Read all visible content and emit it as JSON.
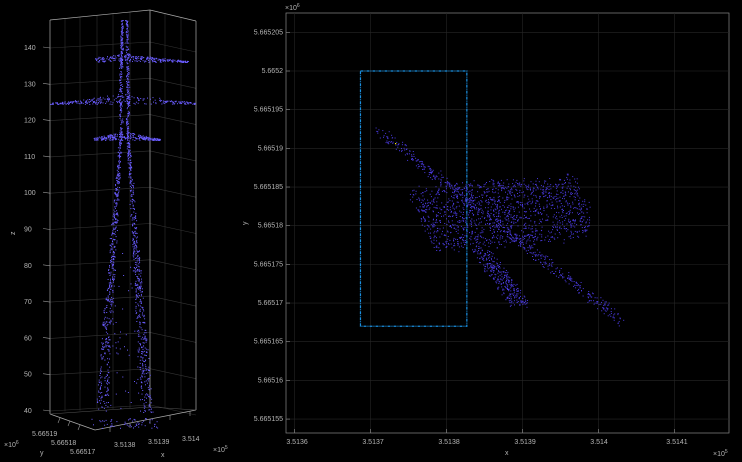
{
  "chart_data": [
    {
      "type": "scatter",
      "projection": "3d",
      "xlabel": "x",
      "ylabel": "y",
      "zlabel": "z",
      "x_ticks": [
        "3.5138",
        "3.5139",
        "3.514"
      ],
      "x_exponent": "×10",
      "x_exponent_power": "5",
      "y_ticks": [
        "5.66519",
        "5.66518",
        "5.66517"
      ],
      "y_exponent": "×10",
      "y_exponent_power": "6",
      "z_ticks": [
        40,
        50,
        60,
        70,
        80,
        90,
        100,
        110,
        120,
        130,
        140
      ],
      "zlim": [
        38,
        147
      ],
      "grid": true,
      "point_color": "#6a5cff",
      "background": "#000000"
    },
    {
      "type": "scatter",
      "xlabel": "x",
      "ylabel": "y",
      "x_ticks": [
        "3.5136",
        "3.5137",
        "3.5138",
        "3.5139",
        "3.514",
        "3.5141"
      ],
      "x_tick_values": [
        3.5136,
        3.5137,
        3.5138,
        3.5139,
        3.514,
        3.5141
      ],
      "x_exponent": "×10",
      "x_exponent_power": "5",
      "xlim": [
        3.513589,
        3.514172
      ],
      "y_ticks": [
        "5.665205",
        "5.6652",
        "5.665195",
        "5.66519",
        "5.665185",
        "5.66518",
        "5.665175",
        "5.66517",
        "5.665165",
        "5.66516",
        "5.665155"
      ],
      "y_tick_values": [
        5.665205,
        5.6652,
        5.665195,
        5.66519,
        5.665185,
        5.66518,
        5.665175,
        5.66517,
        5.665165,
        5.66516,
        5.665155
      ],
      "y_exponent": "×10",
      "y_exponent_power": "6",
      "ylim": [
        5.6651532,
        5.6652075
      ],
      "grid": true,
      "point_color": "#4a3ae0",
      "bounding_box": {
        "x_min": 3.513687,
        "x_max": 3.513827,
        "y_min": 5.665167,
        "y_max": 5.6652,
        "color": "#1a8fe0",
        "style": "dash-dot"
      }
    }
  ]
}
